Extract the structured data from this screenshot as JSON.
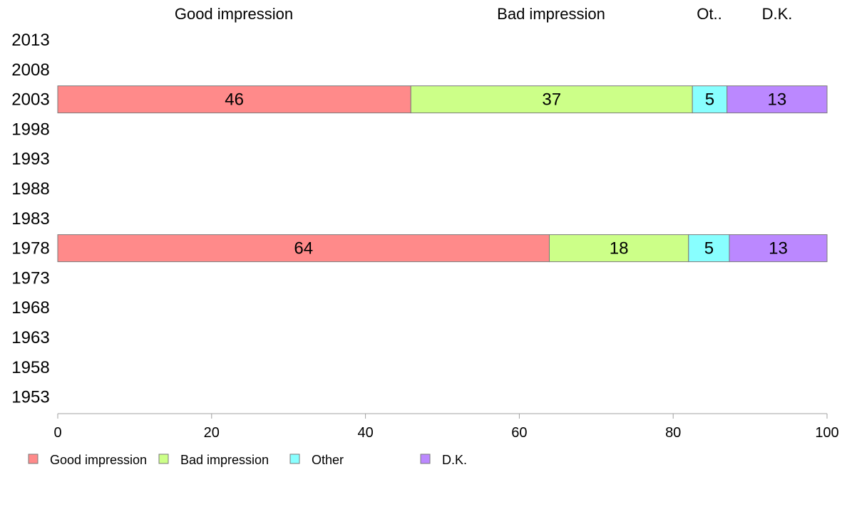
{
  "chart_data": {
    "type": "bar",
    "orientation": "horizontal",
    "stacked": true,
    "categories": [
      "2013",
      "2008",
      "2003",
      "1998",
      "1993",
      "1988",
      "1983",
      "1978",
      "1973",
      "1968",
      "1963",
      "1958",
      "1953"
    ],
    "column_headers": [
      "Good impression",
      "Bad impression",
      "Ot..",
      "D.K."
    ],
    "series": [
      {
        "name": "Good impression",
        "color": "#ff8a8a",
        "values": [
          null,
          null,
          46,
          null,
          null,
          null,
          null,
          64,
          null,
          null,
          null,
          null,
          null
        ]
      },
      {
        "name": "Bad impression",
        "color": "#ccff88",
        "values": [
          null,
          null,
          37,
          null,
          null,
          null,
          null,
          18,
          null,
          null,
          null,
          null,
          null
        ]
      },
      {
        "name": "Other",
        "color": "#88ffff",
        "values": [
          null,
          null,
          5,
          null,
          null,
          null,
          null,
          5,
          null,
          null,
          null,
          null,
          null
        ]
      },
      {
        "name": "D.K.",
        "color": "#bb88ff",
        "values": [
          null,
          null,
          13,
          null,
          null,
          null,
          null,
          13,
          null,
          null,
          null,
          null,
          null
        ]
      }
    ],
    "bar_starts": {
      "2003": [
        0,
        45.9,
        82.5,
        87.0
      ],
      "1978": [
        0,
        63.9,
        82.0,
        87.3
      ]
    },
    "xlim": [
      0,
      100
    ],
    "x_ticks": [
      0,
      20,
      40,
      60,
      80,
      100
    ],
    "grid": false,
    "legend_position": "bottom"
  }
}
